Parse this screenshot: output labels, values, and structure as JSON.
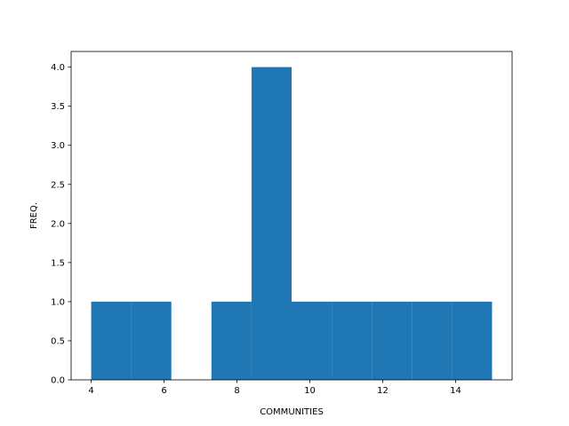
{
  "chart_data": {
    "type": "bar",
    "subtype": "histogram",
    "title": "",
    "xlabel": "COMMUNITIES",
    "ylabel": "FREQ.",
    "xlim": [
      3.45,
      15.55
    ],
    "ylim": [
      0,
      4.2
    ],
    "xticks": [
      4,
      6,
      8,
      10,
      12,
      14
    ],
    "yticks": [
      0.0,
      0.5,
      1.0,
      1.5,
      2.0,
      2.5,
      3.0,
      3.5,
      4.0
    ],
    "bin_edges": [
      4.0,
      5.1,
      6.2,
      7.3,
      8.4,
      9.5,
      10.6,
      11.7,
      12.8,
      13.9,
      15.0
    ],
    "values": [
      1,
      1,
      0,
      1,
      4,
      1,
      1,
      1,
      1,
      1
    ],
    "bar_color": "#1f77b4",
    "grid": false,
    "legend": "none"
  }
}
